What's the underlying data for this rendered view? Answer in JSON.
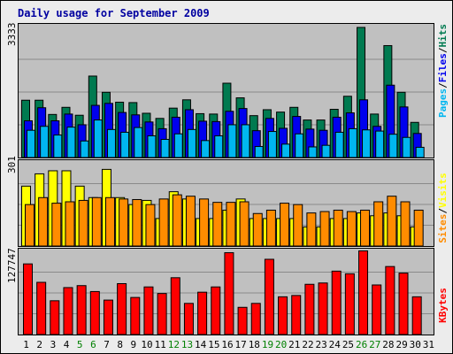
{
  "chart_data": {
    "type": "bar",
    "title": "Daily usage for September 2009",
    "categories": [
      "1",
      "2",
      "3",
      "4",
      "5",
      "6",
      "7",
      "8",
      "9",
      "10",
      "11",
      "12",
      "13",
      "14",
      "15",
      "16",
      "17",
      "18",
      "19",
      "20",
      "21",
      "22",
      "23",
      "24",
      "25",
      "26",
      "27",
      "28",
      "29",
      "30",
      "31"
    ],
    "weekend_days": [
      "5",
      "6",
      "12",
      "13",
      "19",
      "20",
      "26",
      "27"
    ],
    "panels": [
      {
        "id": "hits-files-pages",
        "max_label": "3333",
        "ylim": [
          0,
          3333
        ],
        "series": [
          {
            "name": "Hits",
            "color": "#007a50",
            "values": [
              1460,
              1460,
              1100,
              1280,
              1080,
              2070,
              1660,
              1410,
              1400,
              1130,
              1000,
              1260,
              1470,
              1120,
              1110,
              1890,
              1520,
              1070,
              1220,
              1160,
              1280,
              960,
              960,
              1230,
              1560,
              3300,
              1110,
              2840,
              1660,
              900,
              0
            ]
          },
          {
            "name": "Files",
            "color": "#0000ee",
            "values": [
              940,
              1270,
              940,
              1110,
              840,
              1330,
              1380,
              1150,
              1090,
              910,
              740,
              1030,
              1220,
              930,
              920,
              1180,
              1250,
              690,
              1000,
              750,
              1050,
              730,
              700,
              1030,
              1140,
              1470,
              800,
              1840,
              1290,
              620,
              0
            ]
          },
          {
            "name": "Pages",
            "color": "#00b6f0",
            "values": [
              700,
              800,
              580,
              780,
              430,
              960,
              720,
              650,
              770,
              560,
              470,
              610,
              720,
              440,
              560,
              840,
              840,
              290,
              670,
              350,
              610,
              280,
              320,
              650,
              740,
              710,
              680,
              600,
              520,
              270,
              0
            ]
          }
        ]
      },
      {
        "id": "visits-sites",
        "max_label": "301",
        "ylim": [
          0,
          301
        ],
        "series": [
          {
            "name": "Visits",
            "color": "#ffff00",
            "values": [
              216,
              260,
              271,
              271,
              216,
              175,
              276,
              175,
              150,
              165,
              100,
              196,
              170,
              100,
              100,
              130,
              170,
              100,
              100,
              100,
              100,
              70,
              70,
              100,
              100,
              120,
              110,
              120,
              110,
              70,
              0
            ]
          },
          {
            "name": "Sites",
            "color": "#ff8c00",
            "values": [
              150,
              175,
              155,
              160,
              165,
              175,
              175,
              170,
              168,
              150,
              170,
              185,
              180,
              170,
              158,
              158,
              160,
              118,
              130,
              155,
              150,
              120,
              125,
              130,
              125,
              130,
              160,
              180,
              160,
              130,
              0
            ]
          }
        ]
      },
      {
        "id": "kbytes",
        "max_label": "127747",
        "ylim": [
          0,
          127747
        ],
        "series": [
          {
            "name": "KBytes",
            "color": "#ff0000",
            "values": [
              108000,
              80000,
              52000,
              72000,
              75000,
              66000,
              53000,
              78000,
              57000,
              73000,
              63000,
              87000,
              48000,
              65000,
              73000,
              125000,
              42000,
              48000,
              115000,
              58000,
              60000,
              77000,
              79000,
              97000,
              93000,
              128000,
              76000,
              104000,
              94000,
              58000,
              0
            ]
          }
        ]
      }
    ],
    "right_labels": {
      "top": [
        {
          "text": "Pages",
          "color": "#00b6f0"
        },
        {
          "text": "/",
          "color": "#000000"
        },
        {
          "text": "Files",
          "color": "#0000ee"
        },
        {
          "text": "/",
          "color": "#000000"
        },
        {
          "text": "Hits",
          "color": "#007a50"
        }
      ],
      "middle": [
        {
          "text": "Sites",
          "color": "#ff8c00"
        },
        {
          "text": "/",
          "color": "#000000"
        },
        {
          "text": "Visits",
          "color": "#ffff00"
        }
      ],
      "bottom": [
        {
          "text": "KBytes",
          "color": "#ff0000"
        }
      ]
    },
    "colors": {
      "background": "#ececec",
      "plot_bg": "#c0c0c0",
      "title": "#0000a0",
      "weekday_label": "#000000",
      "weekend_label": "#008000"
    }
  }
}
